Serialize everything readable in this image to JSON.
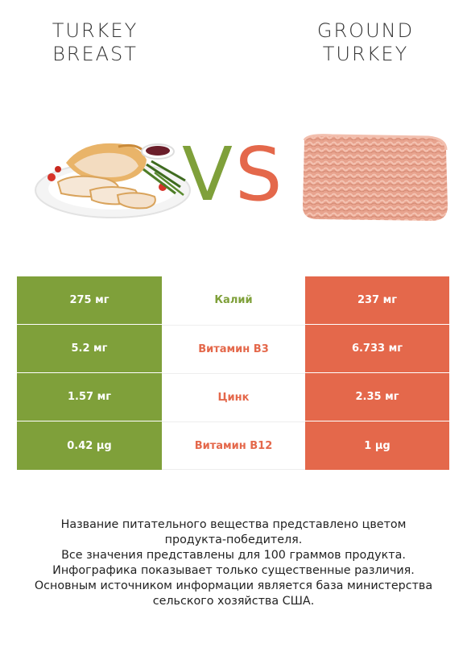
{
  "products": {
    "left": {
      "title_line1": "TURKEY",
      "title_line2": "BREAST",
      "image_icon": "turkey-breast-plate-icon",
      "color": "#7fa03a"
    },
    "right": {
      "title_line1": "GROUND",
      "title_line2": "TURKEY",
      "image_icon": "ground-turkey-icon",
      "color": "#e4684b"
    }
  },
  "vs": {
    "v": "V",
    "s": "S",
    "v_color": "#7fa03a",
    "s_color": "#e4684b"
  },
  "nutrients": [
    {
      "name": "Калий",
      "left": "275 мг",
      "right": "237 мг",
      "winner": "left"
    },
    {
      "name": "Витамин B3",
      "left": "5.2 мг",
      "right": "6.733 мг",
      "winner": "right"
    },
    {
      "name": "Цинк",
      "left": "1.57 мг",
      "right": "2.35 мг",
      "winner": "right"
    },
    {
      "name": "Витамин B12",
      "left": "0.42 µg",
      "right": "1 µg",
      "winner": "right"
    }
  ],
  "footnote": [
    "Название питательного вещества представлено цветом",
    "продукта-победителя.",
    "Все значения представлены для 100 граммов продукта.",
    "Инфографика показывает только существенные различия.",
    "Основным источником информации является база министерства",
    "сельского хозяйства США."
  ]
}
